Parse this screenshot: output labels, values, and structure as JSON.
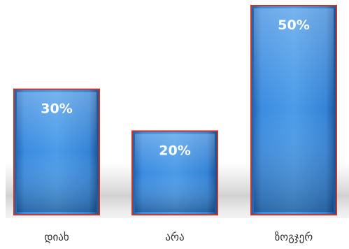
{
  "chart_data": {
    "type": "bar",
    "categories": [
      "დიახ",
      "არა",
      "ზოგჯერ"
    ],
    "values": [
      30,
      20,
      50
    ],
    "value_labels": [
      "30%",
      "20%",
      "50%"
    ],
    "title": "",
    "xlabel": "",
    "ylabel": "",
    "ylim": [
      0,
      50
    ],
    "grid": false,
    "legend": "none",
    "colors": {
      "bar_fill": "#3d8fd6",
      "bar_edge": "#c0392b",
      "label": "#ffffff",
      "category_text": "#333333"
    }
  }
}
